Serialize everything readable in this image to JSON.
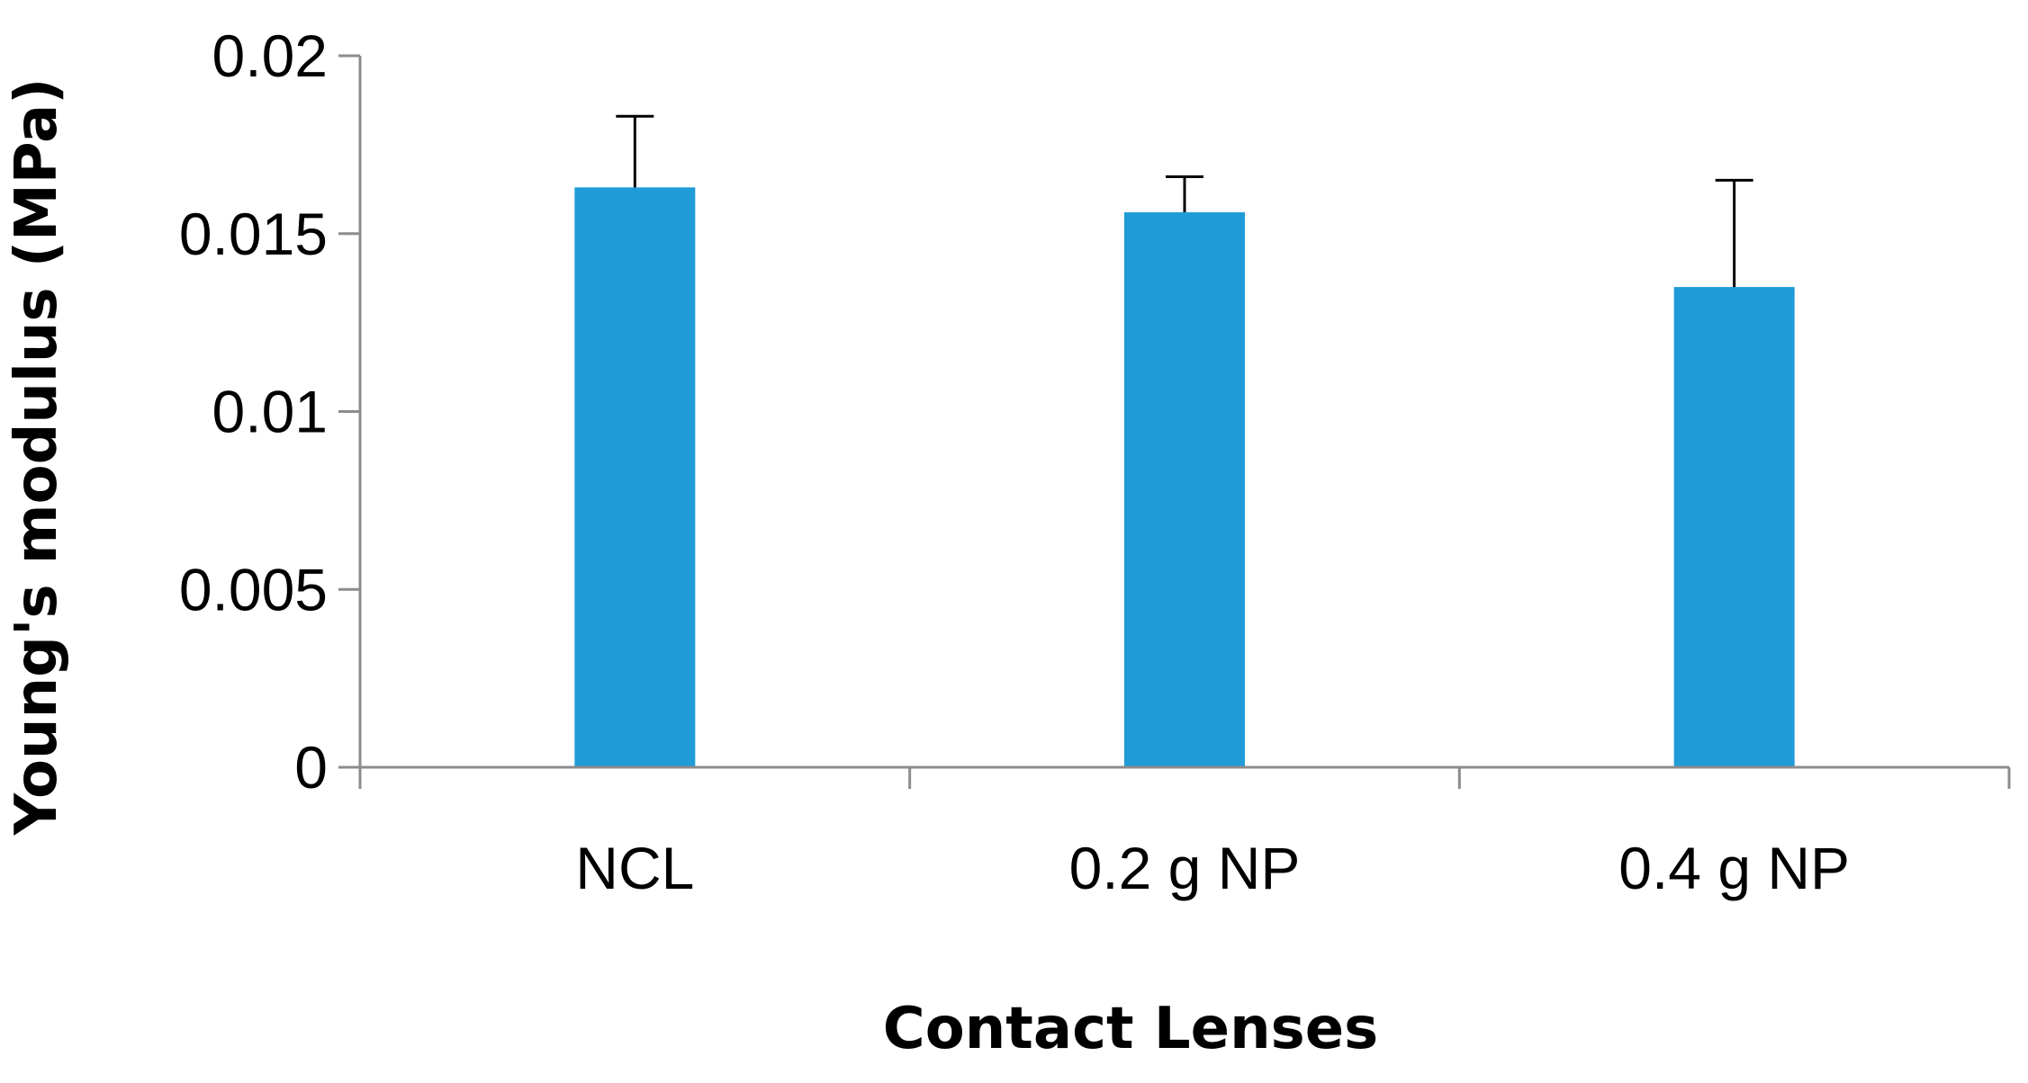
{
  "chart_data": {
    "type": "bar",
    "title": "",
    "xlabel": "Contact Lenses",
    "ylabel": "Young's modulus (MPa)",
    "categories": [
      "NCL",
      "0.2 g NP",
      "0.4 g NP"
    ],
    "values": [
      0.0163,
      0.0156,
      0.0135
    ],
    "error_plus": [
      0.002,
      0.001,
      0.003
    ],
    "ylim": [
      0,
      0.02
    ],
    "yticks": [
      0,
      0.005,
      0.01,
      0.015,
      0.02
    ],
    "ytick_labels": [
      "0",
      "0.005",
      "0.01",
      "0.015",
      "0.02"
    ],
    "grid": false,
    "legend": "none",
    "colors": {
      "bar": "#1f9bd7",
      "axis": "#8c8c8c",
      "error_bar": "#000000"
    }
  }
}
